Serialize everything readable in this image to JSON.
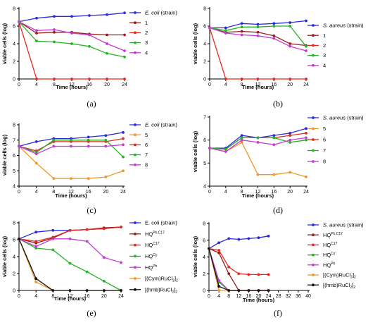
{
  "chart_data": [
    {
      "type": "line",
      "panel_label": "(a)",
      "xlabel": "Time (hours)",
      "ylabel": "viable cells (log)",
      "x": [
        0,
        4,
        8,
        12,
        16,
        20,
        24
      ],
      "xlim": [
        0,
        24
      ],
      "ylim": [
        0,
        8
      ],
      "yticks": [
        0,
        2,
        4,
        6,
        8
      ],
      "legend": "right",
      "series": [
        {
          "name": "E. coli (strain)",
          "italic": "E. coli",
          "rest": " (strain)",
          "color": "#2a2ae0",
          "values": [
            6.5,
            6.9,
            7.1,
            7.1,
            7.2,
            7.3,
            7.5
          ]
        },
        {
          "name": "1",
          "color": "#9b1c1c",
          "values": [
            6.5,
            5.2,
            5.3,
            5.3,
            5.1,
            5.0,
            5.0
          ]
        },
        {
          "name": "2",
          "color": "#e8281e",
          "values": [
            6.5,
            0,
            0,
            0,
            0,
            0,
            0
          ]
        },
        {
          "name": "3",
          "color": "#22b422",
          "values": [
            6.5,
            4.3,
            4.2,
            4.0,
            3.7,
            2.9,
            2.5
          ]
        },
        {
          "name": "4",
          "color": "#c43bd6",
          "values": [
            6.5,
            5.5,
            5.6,
            5.2,
            5.0,
            4.0,
            3.2
          ]
        }
      ]
    },
    {
      "type": "line",
      "panel_label": "(b)",
      "xlabel": "Time (hours)",
      "ylabel": "viable cells (log)",
      "x": [
        0,
        4,
        8,
        12,
        16,
        20,
        24
      ],
      "xlim": [
        0,
        24
      ],
      "ylim": [
        0,
        8
      ],
      "yticks": [
        0,
        2,
        4,
        6,
        8
      ],
      "legend": "right",
      "series": [
        {
          "name": "S. aureus (strain)",
          "italic": "S. aureus",
          "rest": " (strain)",
          "color": "#2a2ae0",
          "values": [
            5.8,
            5.8,
            6.3,
            6.2,
            6.3,
            6.4,
            6.6
          ]
        },
        {
          "name": "1",
          "color": "#9b1c1c",
          "values": [
            5.8,
            5.3,
            5.4,
            5.3,
            4.9,
            4.0,
            3.8
          ]
        },
        {
          "name": "2",
          "color": "#e8281e",
          "values": [
            5.8,
            0,
            0,
            0,
            0,
            0,
            0
          ]
        },
        {
          "name": "3",
          "color": "#22b422",
          "values": [
            5.8,
            5.5,
            5.9,
            5.9,
            6.0,
            6.0,
            3.7
          ]
        },
        {
          "name": "4",
          "color": "#c43bd6",
          "values": [
            5.8,
            5.2,
            5.0,
            4.9,
            4.6,
            3.7,
            3.2
          ]
        }
      ]
    },
    {
      "type": "line",
      "panel_label": "(c)",
      "xlabel": "Time (hours)",
      "ylabel": "viable cells (log)",
      "x": [
        0,
        4,
        8,
        12,
        16,
        20,
        24
      ],
      "xlim": [
        0,
        24
      ],
      "ylim": [
        4,
        8
      ],
      "yticks": [
        4,
        5,
        6,
        7,
        8
      ],
      "legend": "right",
      "series": [
        {
          "name": "E. coli (strain)",
          "italic": "E. coli",
          "rest": " (strain)",
          "color": "#2a2ae0",
          "values": [
            6.6,
            6.9,
            7.1,
            7.1,
            7.2,
            7.3,
            7.5
          ]
        },
        {
          "name": "5",
          "color": "#f0962a",
          "values": [
            6.6,
            5.5,
            4.5,
            4.5,
            4.5,
            4.6,
            5.0
          ]
        },
        {
          "name": "6",
          "color": "#e8281e",
          "values": [
            6.6,
            6.3,
            6.9,
            6.9,
            6.9,
            6.9,
            7.1
          ]
        },
        {
          "name": "7",
          "color": "#22b422",
          "values": [
            6.6,
            6.2,
            7.0,
            7.0,
            7.0,
            7.0,
            5.9
          ]
        },
        {
          "name": "8",
          "color": "#c43bd6",
          "values": [
            6.6,
            6.1,
            6.6,
            6.6,
            6.6,
            6.6,
            6.7
          ]
        }
      ]
    },
    {
      "type": "line",
      "panel_label": "(d)",
      "xlabel": "Time (hours)",
      "ylabel": "viable cells (log)",
      "x": [
        0,
        4,
        8,
        12,
        16,
        20,
        24
      ],
      "xlim": [
        0,
        24
      ],
      "ylim": [
        4,
        7
      ],
      "yticks": [
        4,
        5,
        6,
        7
      ],
      "legend": "right",
      "series": [
        {
          "name": "S. aureus (strain)",
          "italic": "S. aureus",
          "rest": " (strain)",
          "color": "#2a2ae0",
          "values": [
            5.65,
            5.65,
            6.2,
            6.1,
            6.2,
            6.3,
            6.5
          ]
        },
        {
          "name": "5",
          "color": "#f0962a",
          "values": [
            5.65,
            5.5,
            5.9,
            4.5,
            4.5,
            4.6,
            4.4
          ]
        },
        {
          "name": "6",
          "color": "#e8281e",
          "values": [
            5.65,
            5.6,
            6.1,
            6.1,
            6.1,
            6.2,
            6.3
          ]
        },
        {
          "name": "7",
          "color": "#22b422",
          "values": [
            5.65,
            5.6,
            6.1,
            6.1,
            6.1,
            5.9,
            6.0
          ]
        },
        {
          "name": "8",
          "color": "#c43bd6",
          "values": [
            5.65,
            5.5,
            6.0,
            5.9,
            5.8,
            6.0,
            6.1
          ]
        }
      ]
    },
    {
      "type": "line",
      "panel_label": "(e)",
      "xlabel": "Time (hours)",
      "ylabel": "viable cells (log)",
      "x": [
        0,
        4,
        8,
        12,
        16,
        20,
        24
      ],
      "xlim": [
        0,
        24
      ],
      "ylim": [
        0,
        8
      ],
      "yticks": [
        0,
        2,
        4,
        6,
        8
      ],
      "legend": "right",
      "series": [
        {
          "name": "E. coli (strain)",
          "color": "#2a2ae0",
          "values": [
            6.1,
            6.9,
            7.1,
            7.1,
            7.2,
            7.3,
            7.5
          ]
        },
        {
          "name": "HQ^Ph,C17",
          "base": "HQ",
          "sup": "Ph,C17",
          "color": "#9b1c1c",
          "values": [
            6.1,
            5.6,
            6.2,
            7.1,
            7.2,
            7.4,
            7.5
          ]
        },
        {
          "name": "HQ^C17",
          "base": "HQ",
          "sup": "C17",
          "color": "#e8281e",
          "values": [
            6.1,
            5.8,
            6.3,
            7.1,
            7.2,
            7.3,
            7.5
          ]
        },
        {
          "name": "HQ^Cy",
          "base": "HQ",
          "sup": "Cy",
          "color": "#22b422",
          "values": [
            6.1,
            5.0,
            4.8,
            3.2,
            2.2,
            1.1,
            0
          ]
        },
        {
          "name": "HQ^Ph",
          "base": "HQ",
          "sup": "Ph",
          "color": "#c43bd6",
          "values": [
            6.1,
            5.2,
            6.1,
            6.1,
            5.8,
            3.9,
            3.3
          ]
        },
        {
          "name": "[(Cym)RuCl2]2",
          "base": "[(Cym)RuCl",
          "sub1": "2",
          "mid": "]",
          "sub2": "2",
          "color": "#f0962a",
          "values": [
            6.1,
            1.0,
            0,
            0,
            0,
            0,
            0
          ]
        },
        {
          "name": "[(hmb)RuCl2]2",
          "base": "[(hmb)RuCl",
          "sub1": "2",
          "mid": "]",
          "sub2": "2",
          "color": "#111111",
          "values": [
            6.1,
            1.4,
            0,
            0,
            0,
            0,
            0
          ]
        }
      ]
    },
    {
      "type": "line",
      "panel_label": "(f)",
      "xlabel": "Time (hours)",
      "ylabel": "viable cells (log)",
      "x": [
        0,
        4,
        8,
        12,
        16,
        20,
        24,
        28,
        32,
        36,
        40
      ],
      "xlim": [
        0,
        40
      ],
      "xtick_step": 4,
      "ylim": [
        0,
        8
      ],
      "yticks": [
        0,
        2,
        4,
        6,
        8
      ],
      "legend": "right",
      "series": [
        {
          "name": "S. aureus (strain)",
          "italic": "S. aureus",
          "rest": " (strain)",
          "color": "#2a2ae0",
          "values": [
            5.0,
            5.7,
            6.2,
            6.1,
            6.2,
            6.3,
            6.5,
            null,
            null,
            null,
            null
          ]
        },
        {
          "name": "HQ^Ph,C17",
          "base": "HQ",
          "sup": "Ph,C17",
          "color": "#9b1c1c",
          "values": [
            5.0,
            4.5,
            2.0,
            0,
            0,
            0,
            0,
            null,
            null,
            null,
            null
          ]
        },
        {
          "name": "HQ^C17",
          "base": "HQ",
          "sup": "C17",
          "color": "#e8281e",
          "values": [
            5.0,
            4.8,
            2.8,
            2.0,
            1.9,
            1.9,
            1.9,
            null,
            null,
            null,
            null
          ]
        },
        {
          "name": "HQ^Cy",
          "base": "HQ",
          "sup": "Cy",
          "color": "#22b422",
          "values": [
            5.0,
            1.0,
            0,
            0,
            0,
            0,
            0,
            null,
            null,
            null,
            null
          ]
        },
        {
          "name": "HQ^Ph",
          "base": "HQ",
          "sup": "Ph",
          "color": "#c43bd6",
          "values": [
            5.0,
            1.2,
            0,
            0,
            0,
            0,
            0,
            null,
            null,
            null,
            null
          ]
        },
        {
          "name": "[(Cym)RuCl2]2",
          "base": "[(Cym)RuCl",
          "sub1": "2",
          "mid": "]",
          "sub2": "2",
          "color": "#f0962a",
          "values": [
            5.0,
            0,
            0,
            0,
            0,
            0,
            0,
            null,
            null,
            null,
            null
          ]
        },
        {
          "name": "[(hmb)RuCl2]2",
          "base": "[(hmb)RuCl",
          "sub1": "2",
          "mid": "]",
          "sub2": "2",
          "color": "#111111",
          "values": [
            5.0,
            0.5,
            0,
            0,
            0,
            0,
            0,
            null,
            null,
            null,
            null
          ]
        }
      ]
    }
  ]
}
